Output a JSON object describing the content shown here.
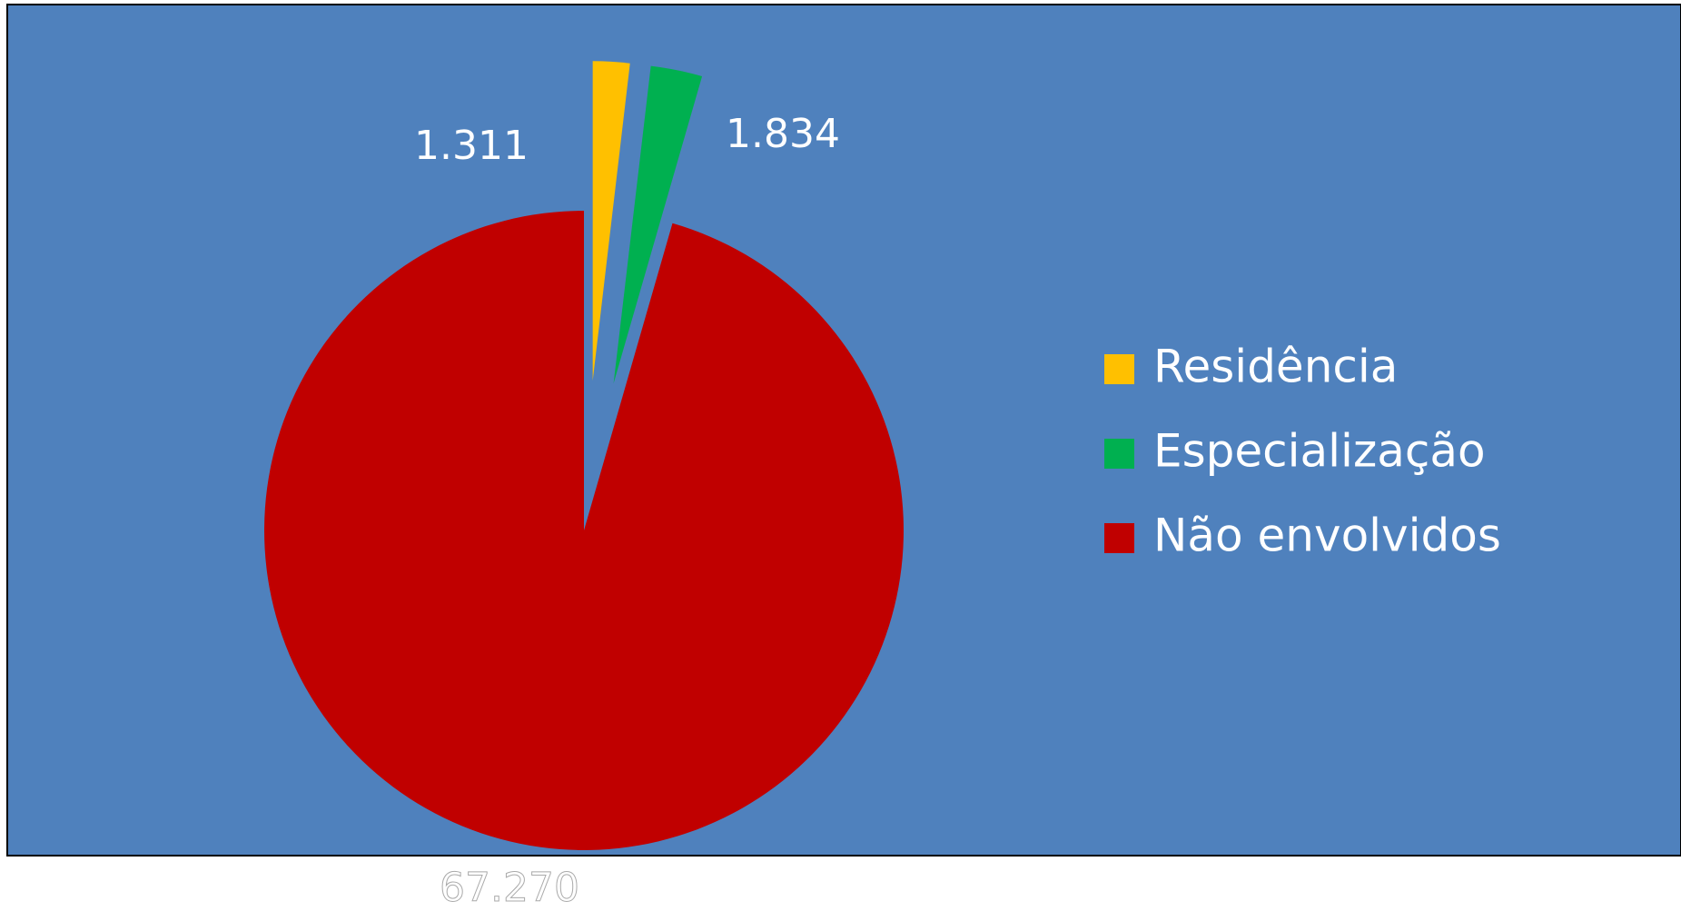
{
  "chart_data": {
    "type": "pie",
    "categories": [
      "Residência",
      "Especialização",
      "Não envolvidos"
    ],
    "values": [
      1311,
      1834,
      67270
    ],
    "value_labels": [
      "1.311",
      "1.834",
      "67.270"
    ],
    "colors": [
      "#ffc000",
      "#00b050",
      "#c00000"
    ],
    "exploded": [
      true,
      true,
      false
    ],
    "legend": "right"
  }
}
